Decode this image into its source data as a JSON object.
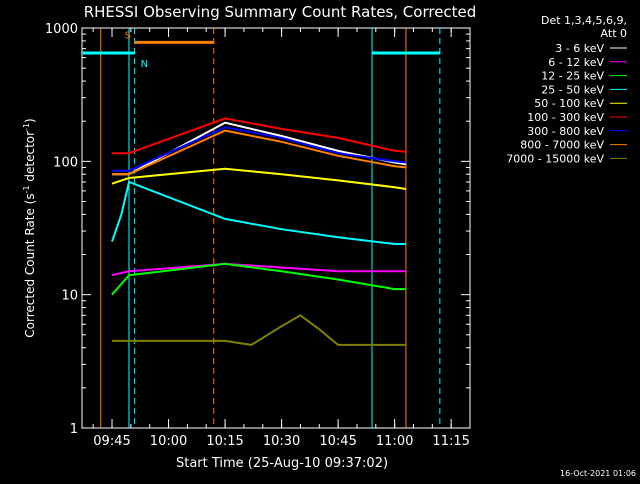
{
  "chart_data": {
    "type": "line",
    "title": "RHESSI Observing Summary Count Rates, Corrected",
    "xlabel": "Start Time (25-Aug-10 09:37:02)",
    "ylabel_main": "Corrected Count Rate (s",
    "ylabel_sup1": "-1",
    "ylabel_mid": " detector",
    "ylabel_sup2": "-1",
    "ylabel_end": ")",
    "yscale": "log",
    "ylim": [
      1,
      1000
    ],
    "xlim": [
      "09:37:02",
      "11:20:00"
    ],
    "x_ticks": [
      {
        "t": "09:45",
        "label": "09:45"
      },
      {
        "t": "10:00",
        "label": "10:00"
      },
      {
        "t": "10:15",
        "label": "10:15"
      },
      {
        "t": "10:30",
        "label": "10:30"
      },
      {
        "t": "10:45",
        "label": "10:45"
      },
      {
        "t": "11:00",
        "label": "11:00"
      },
      {
        "t": "11:15",
        "label": "11:15"
      }
    ],
    "y_ticks": [
      {
        "v": 1,
        "label": "1"
      },
      {
        "v": 10,
        "label": "10"
      },
      {
        "v": 100,
        "label": "100"
      },
      {
        "v": 1000,
        "label": "1000"
      }
    ],
    "legend_header": [
      "Det 1,3,4,5,6,9,",
      "Att 0"
    ],
    "legend_position": "right",
    "series": [
      {
        "name": "3 - 6 keV",
        "color": "#ffffff",
        "points": [
          [
            "09:45:00",
            80
          ],
          [
            "09:49:30",
            80
          ],
          [
            "10:15:00",
            195
          ],
          [
            "10:30:00",
            155
          ],
          [
            "10:45:00",
            120
          ],
          [
            "11:00:00",
            98
          ],
          [
            "11:03:00",
            95
          ]
        ]
      },
      {
        "name": "6 - 12 keV",
        "color": "#ff00ff",
        "points": [
          [
            "09:45:00",
            14
          ],
          [
            "09:49:30",
            15
          ],
          [
            "10:15:00",
            17
          ],
          [
            "10:30:00",
            16
          ],
          [
            "10:45:00",
            15
          ],
          [
            "11:00:00",
            15
          ],
          [
            "11:03:00",
            15
          ]
        ]
      },
      {
        "name": "12 - 25 keV",
        "color": "#00ff00",
        "points": [
          [
            "09:45:00",
            10
          ],
          [
            "09:49:30",
            14
          ],
          [
            "10:15:00",
            17
          ],
          [
            "10:30:00",
            15
          ],
          [
            "10:45:00",
            13
          ],
          [
            "11:00:00",
            11
          ],
          [
            "11:03:00",
            11
          ]
        ]
      },
      {
        "name": "25 - 50 keV",
        "color": "#00ffff",
        "points": [
          [
            "09:45:00",
            25
          ],
          [
            "09:47:30",
            40
          ],
          [
            "09:49:30",
            70
          ],
          [
            "10:15:00",
            37
          ],
          [
            "10:30:00",
            31
          ],
          [
            "10:45:00",
            27
          ],
          [
            "11:00:00",
            24
          ],
          [
            "11:03:00",
            24
          ]
        ]
      },
      {
        "name": "50 - 100 keV",
        "color": "#ffff00",
        "points": [
          [
            "09:45:00",
            68
          ],
          [
            "09:49:30",
            75
          ],
          [
            "10:15:00",
            88
          ],
          [
            "10:30:00",
            80
          ],
          [
            "10:45:00",
            72
          ],
          [
            "11:00:00",
            64
          ],
          [
            "11:03:00",
            62
          ]
        ]
      },
      {
        "name": "100 - 300 keV",
        "color": "#ff0000",
        "points": [
          [
            "09:45:00",
            115
          ],
          [
            "09:49:30",
            115
          ],
          [
            "10:15:00",
            210
          ],
          [
            "10:30:00",
            175
          ],
          [
            "10:45:00",
            150
          ],
          [
            "11:00:00",
            120
          ],
          [
            "11:03:00",
            118
          ]
        ]
      },
      {
        "name": "300 - 800 keV",
        "color": "#0000ff",
        "points": [
          [
            "09:45:00",
            85
          ],
          [
            "09:49:30",
            85
          ],
          [
            "10:15:00",
            180
          ],
          [
            "10:30:00",
            150
          ],
          [
            "10:45:00",
            115
          ],
          [
            "11:00:00",
            100
          ],
          [
            "11:03:00",
            98
          ]
        ]
      },
      {
        "name": "800 - 7000 keV",
        "color": "#ff8000",
        "points": [
          [
            "09:45:00",
            80
          ],
          [
            "09:49:30",
            80
          ],
          [
            "10:15:00",
            170
          ],
          [
            "10:30:00",
            140
          ],
          [
            "10:45:00",
            110
          ],
          [
            "11:00:00",
            92
          ],
          [
            "11:03:00",
            90
          ]
        ]
      },
      {
        "name": "7000 - 15000 keV",
        "color": "#808000",
        "points": [
          [
            "09:45:00",
            4.5
          ],
          [
            "09:49:30",
            4.5
          ],
          [
            "10:15:00",
            4.5
          ],
          [
            "10:22:00",
            4.2
          ],
          [
            "10:30:00",
            5.8
          ],
          [
            "10:35:00",
            7
          ],
          [
            "10:40:00",
            5.5
          ],
          [
            "10:45:00",
            4.2
          ],
          [
            "10:50:00",
            4.2
          ],
          [
            "11:00:00",
            4.2
          ],
          [
            "11:03:00",
            4.2
          ]
        ]
      }
    ],
    "intervals": [
      {
        "label": "",
        "color": "#00ffff",
        "start": "09:37:02",
        "end": "09:51:00",
        "value": 650
      },
      {
        "label": "S",
        "color": "#ff8000",
        "start": "09:51:00",
        "end": "10:12:00",
        "value": 780
      },
      {
        "label": "N",
        "color": "#00ffff",
        "start": "09:51:00",
        "end": "09:51:00",
        "value": 650
      },
      {
        "label": "",
        "color": "#00ffff",
        "start": "10:54:00",
        "end": "11:12:00",
        "value": 650
      }
    ],
    "vertical_markers": [
      {
        "t": "09:51:00",
        "color": "#00ffff",
        "style": "dashed"
      },
      {
        "t": "10:12:00",
        "color": "#ff8000",
        "style": "dashed"
      },
      {
        "t": "11:12:00",
        "color": "#00ffff",
        "style": "dashed"
      },
      {
        "t": "09:42:00",
        "color": "#ff8000",
        "style": "solid"
      },
      {
        "t": "09:49:30",
        "color": "#00ffff",
        "style": "solid"
      },
      {
        "t": "10:54:00",
        "color": "#00ffff",
        "style": "solid"
      },
      {
        "t": "11:03:00",
        "color": "#ff8000",
        "style": "solid"
      }
    ],
    "timestamp": "16-Oct-2021 01:06"
  }
}
